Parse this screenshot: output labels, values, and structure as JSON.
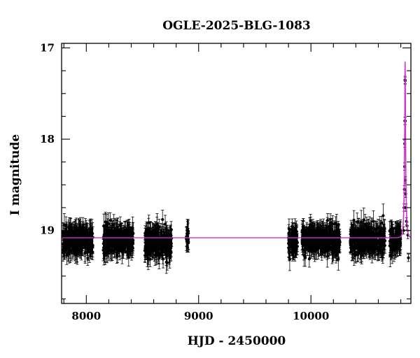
{
  "chart_data": {
    "type": "scatter",
    "title": "OGLE-2025-BLG-1083",
    "xlabel": "HJD - 2450000",
    "ylabel": "I magnitude",
    "xlim": [
      7780,
      10890
    ],
    "ylim": [
      19.8,
      16.95
    ],
    "y_inverted": true,
    "x_ticks": [
      8000,
      9000,
      10000
    ],
    "y_ticks": [
      17,
      18,
      19
    ],
    "grid": false,
    "legend": "none",
    "colors": {
      "points": "#000000",
      "model": "#cc33cc",
      "frame": "#000000"
    },
    "baseline_mag": 19.08,
    "series": [
      {
        "kind": "observed",
        "clusters": [
          {
            "x_range": [
              7790,
              8060
            ],
            "mean_mag": 19.1,
            "scatter_mag": 0.12,
            "err_mag": 0.1
          },
          {
            "x_range": [
              8150,
              8420
            ],
            "mean_mag": 19.1,
            "scatter_mag": 0.12,
            "err_mag": 0.1
          },
          {
            "x_range": [
              8520,
              8760
            ],
            "mean_mag": 19.12,
            "scatter_mag": 0.13,
            "err_mag": 0.1
          },
          {
            "x_range": [
              8890,
              8910
            ],
            "mean_mag": 19.05,
            "scatter_mag": 0.1,
            "err_mag": 0.1
          },
          {
            "x_range": [
              9800,
              9880
            ],
            "mean_mag": 19.1,
            "scatter_mag": 0.12,
            "err_mag": 0.1
          },
          {
            "x_range": [
              9920,
              10260
            ],
            "mean_mag": 19.1,
            "scatter_mag": 0.12,
            "err_mag": 0.1
          },
          {
            "x_range": [
              10350,
              10660
            ],
            "mean_mag": 19.1,
            "scatter_mag": 0.12,
            "err_mag": 0.1
          },
          {
            "x_range": [
              10700,
              10800
            ],
            "mean_mag": 19.1,
            "scatter_mag": 0.11,
            "err_mag": 0.1
          }
        ],
        "event_points": [
          [
            10825,
            19.0
          ],
          [
            10829,
            18.75
          ],
          [
            10832,
            18.55
          ],
          [
            10834,
            18.3
          ],
          [
            10835,
            18.05
          ],
          [
            10836,
            17.8
          ],
          [
            10838,
            17.35
          ],
          [
            10839,
            17.36
          ],
          [
            10840,
            17.8
          ],
          [
            10841,
            18.45
          ],
          [
            10843,
            18.6
          ],
          [
            10846,
            18.75
          ],
          [
            10850,
            18.9
          ],
          [
            10856,
            18.95
          ],
          [
            10863,
            19.05
          ],
          [
            10868,
            19.3
          ]
        ]
      },
      {
        "kind": "model",
        "peak_x": 10838.5,
        "peak_mag": 17.15,
        "tE_days": 12
      }
    ]
  }
}
